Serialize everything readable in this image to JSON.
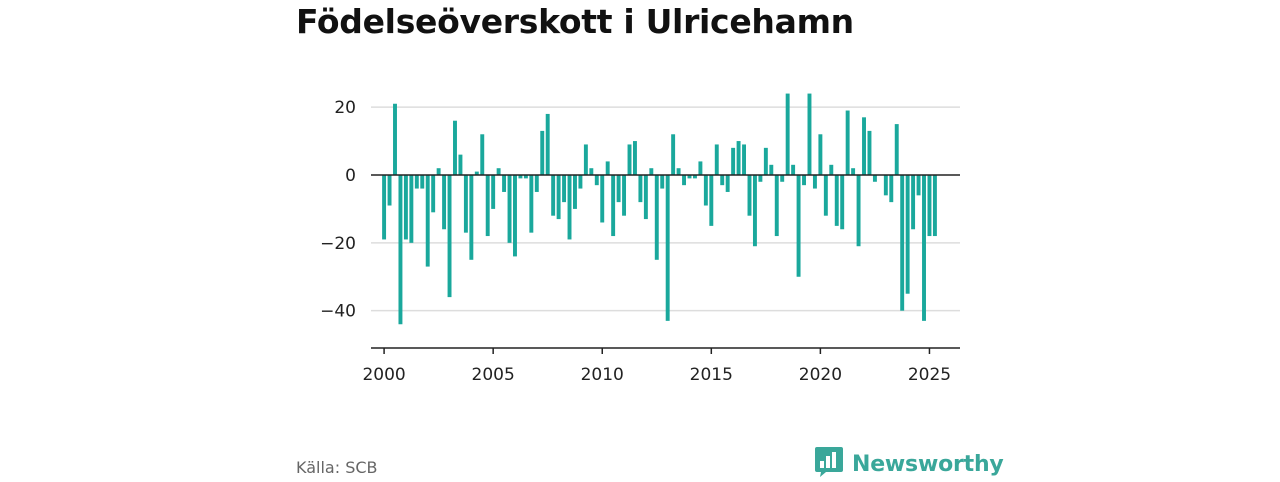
{
  "title": "Födelseöverskott i Ulricehamn",
  "source": "Källa: SCB",
  "brand": {
    "name": "Newsworthy",
    "logo_icon": "newsworthy-bar-chart-logo-icon"
  },
  "colors": {
    "bar": "#1aa89c",
    "grid": "#dddddd",
    "axis": "#222222",
    "zero_line": "#222222",
    "brand": "#3aa79a"
  },
  "chart_data": {
    "type": "bar",
    "title": "Födelseöverskott i Ulricehamn",
    "xlabel": "",
    "ylabel": "",
    "frequency": "quarterly",
    "x_ticks": [
      2000,
      2005,
      2010,
      2015,
      2020,
      2025
    ],
    "y_ticks": [
      20,
      0,
      -20,
      -40
    ],
    "y_tick_labels": [
      "20",
      "0",
      "−20",
      "−40"
    ],
    "ylim": [
      -51,
      28
    ],
    "xlim": [
      1999.4,
      2026.4
    ],
    "grid": true,
    "legend": "none",
    "x": [
      2000.0,
      2000.25,
      2000.5,
      2000.75,
      2001.0,
      2001.25,
      2001.5,
      2001.75,
      2002.0,
      2002.25,
      2002.5,
      2002.75,
      2003.0,
      2003.25,
      2003.5,
      2003.75,
      2004.0,
      2004.25,
      2004.5,
      2004.75,
      2005.0,
      2005.25,
      2005.5,
      2005.75,
      2006.0,
      2006.25,
      2006.5,
      2006.75,
      2007.0,
      2007.25,
      2007.5,
      2007.75,
      2008.0,
      2008.25,
      2008.5,
      2008.75,
      2009.0,
      2009.25,
      2009.5,
      2009.75,
      2010.0,
      2010.25,
      2010.5,
      2010.75,
      2011.0,
      2011.25,
      2011.5,
      2011.75,
      2012.0,
      2012.25,
      2012.5,
      2012.75,
      2013.0,
      2013.25,
      2013.5,
      2013.75,
      2014.0,
      2014.25,
      2014.5,
      2014.75,
      2015.0,
      2015.25,
      2015.5,
      2015.75,
      2016.0,
      2016.25,
      2016.5,
      2016.75,
      2017.0,
      2017.25,
      2017.5,
      2017.75,
      2018.0,
      2018.25,
      2018.5,
      2018.75,
      2019.0,
      2019.25,
      2019.5,
      2019.75,
      2020.0,
      2020.25,
      2020.5,
      2020.75,
      2021.0,
      2021.25,
      2021.5,
      2021.75,
      2022.0,
      2022.25,
      2022.5,
      2022.75,
      2023.0,
      2023.25,
      2023.5,
      2023.75,
      2024.0,
      2024.25,
      2024.5,
      2024.75,
      2025.0,
      2025.25
    ],
    "values": [
      -19,
      -9,
      21,
      -44,
      -19,
      -20,
      -4,
      -4,
      -27,
      -11,
      2,
      -16,
      -36,
      16,
      6,
      -17,
      -25,
      1,
      12,
      -18,
      -10,
      2,
      -5,
      -20,
      -24,
      -1,
      -1,
      -17,
      -5,
      13,
      18,
      -12,
      -13,
      -8,
      -19,
      -10,
      -4,
      9,
      2,
      -3,
      -14,
      4,
      -18,
      -8,
      -12,
      9,
      10,
      -8,
      -13,
      2,
      -25,
      -4,
      -43,
      12,
      2,
      -3,
      -1,
      -1,
      4,
      -9,
      -15,
      9,
      -3,
      -5,
      8,
      10,
      9,
      -12,
      -21,
      -2,
      8,
      3,
      -18,
      -2,
      24,
      3,
      -30,
      -3,
      24,
      -4,
      12,
      -12,
      3,
      -15,
      -16,
      19,
      2,
      -21,
      17,
      13,
      -2,
      0,
      -6,
      -8,
      15,
      -40,
      -35,
      -16,
      -6,
      -43,
      -18,
      -18
    ]
  }
}
